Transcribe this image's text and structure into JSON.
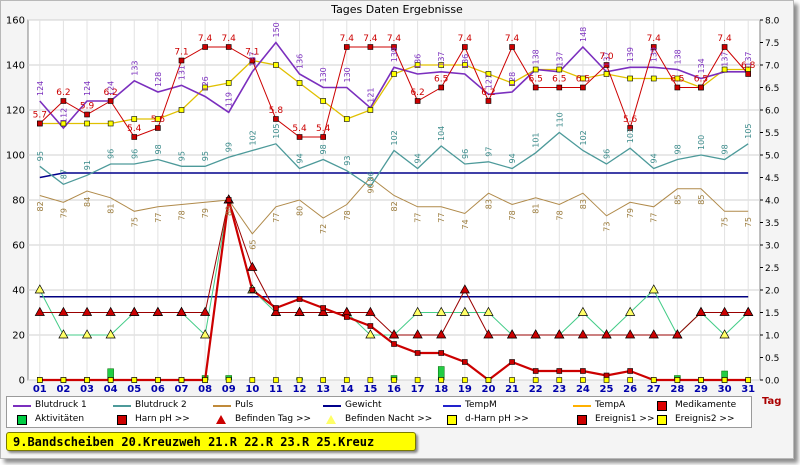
{
  "chart_data": {
    "type": "line",
    "title": "Tages Daten Ergebnisse",
    "xlabel": "Tag",
    "ylim": [
      0,
      160
    ],
    "ylim_right": [
      0,
      8
    ],
    "yticks": [
      "0",
      "20",
      "40",
      "60",
      "80",
      "100",
      "120",
      "140",
      "160"
    ],
    "yticks_right": [
      "0.0",
      "0.5",
      "1.0",
      "1.5",
      "2.0",
      "2.5",
      "3.0",
      "3.5",
      "4.0",
      "4.5",
      "5.0",
      "5.5",
      "6.0",
      "6.5",
      "7.0",
      "7.5",
      "8.0"
    ],
    "categories": [
      "01",
      "02",
      "03",
      "04",
      "05",
      "06",
      "07",
      "08",
      "09",
      "10",
      "11",
      "12",
      "13",
      "14",
      "15",
      "16",
      "17",
      "18",
      "19",
      "20",
      "21",
      "22",
      "23",
      "24",
      "25",
      "26",
      "27",
      "28",
      "29",
      "30",
      "31"
    ],
    "grid": true,
    "series": [
      {
        "name": "Blutdruck 1",
        "color": "#7b2fbe",
        "axis": "left",
        "values": [
          124,
          112,
          124,
          124,
          133,
          128,
          131,
          126,
          119,
          137,
          150,
          136,
          130,
          130,
          121,
          139,
          136,
          137,
          136,
          127,
          128,
          138,
          137,
          148,
          137,
          139,
          139,
          138,
          134,
          137,
          137
        ],
        "labels": [
          124,
          112,
          124,
          124,
          133,
          128,
          131,
          126,
          119,
          137,
          150,
          136,
          130,
          130,
          121,
          139,
          136,
          137,
          136,
          127,
          128,
          138,
          137,
          148,
          137,
          139,
          139,
          138,
          134,
          137,
          137
        ]
      },
      {
        "name": "Blutdruck 2",
        "color": "#4d9a9a",
        "axis": "left",
        "values": [
          95,
          87,
          91,
          96,
          96,
          98,
          95,
          95,
          99,
          102,
          105,
          94,
          98,
          93,
          86,
          102,
          94,
          104,
          96,
          97,
          94,
          101,
          110,
          102,
          96,
          103,
          94,
          98,
          100,
          98,
          105
        ],
        "labels": [
          95,
          87,
          91,
          96,
          96,
          98,
          95,
          95,
          99,
          102,
          105,
          94,
          98,
          93,
          86,
          102,
          94,
          104,
          96,
          97,
          94,
          101,
          110,
          102,
          96,
          103,
          94,
          98,
          100,
          98,
          105
        ]
      },
      {
        "name": "Puls",
        "color": "#b08a4a",
        "axis": "left",
        "values": [
          82,
          79,
          84,
          81,
          75,
          77,
          78,
          79,
          80,
          65,
          77,
          80,
          72,
          78,
          90,
          82,
          77,
          77,
          74,
          83,
          78,
          81,
          78,
          83,
          73,
          79,
          77,
          85,
          85,
          75,
          75
        ],
        "labels": [
          82,
          79,
          84,
          81,
          75,
          77,
          78,
          79,
          80,
          65,
          77,
          80,
          72,
          78,
          90,
          82,
          77,
          77,
          74,
          83,
          78,
          81,
          78,
          83,
          73,
          79,
          77,
          85,
          85,
          75,
          75
        ]
      },
      {
        "name": "Gewicht",
        "color": "#00008b",
        "axis": "left",
        "values": [
          90,
          92,
          92,
          92,
          92,
          92,
          92,
          92,
          92,
          92,
          92,
          92,
          92,
          92,
          92,
          92,
          92,
          92,
          92,
          92,
          92,
          92,
          92,
          92,
          92,
          92,
          92,
          92,
          92,
          92,
          92
        ]
      },
      {
        "name": "TempM",
        "color": "#000080",
        "axis": "left",
        "values": [
          37,
          37,
          37,
          37,
          37,
          37,
          37,
          37,
          37,
          37,
          37,
          37,
          37,
          37,
          37,
          37,
          37,
          37,
          37,
          37,
          37,
          37,
          37,
          37,
          37,
          37,
          37,
          37,
          37,
          37,
          37
        ]
      },
      {
        "name": "TempA",
        "color": "#ffb000",
        "axis": "left",
        "values": [
          37,
          37,
          37,
          37,
          37,
          37,
          37,
          37,
          37,
          37,
          37,
          37,
          37,
          37,
          37,
          37,
          37,
          37,
          37,
          37,
          37,
          37,
          37,
          37,
          37,
          37,
          37,
          37,
          37,
          37,
          37
        ]
      },
      {
        "name": "Medikamente",
        "color": "#dd0000",
        "axis": "left",
        "values": [
          0,
          0,
          0,
          0,
          0,
          0,
          0,
          0,
          0,
          0,
          0,
          0,
          0,
          0,
          0,
          0,
          0,
          0,
          0,
          0,
          0,
          0,
          0,
          0,
          0,
          0,
          0,
          0,
          0,
          0,
          0
        ]
      },
      {
        "name": "Aktivitäten",
        "color": "#00cc00",
        "axis": "left",
        "values": [
          0,
          0,
          0,
          5,
          0,
          0,
          0,
          2,
          2,
          0,
          0,
          1,
          0,
          0,
          0,
          2,
          0,
          6,
          0,
          0,
          0,
          0,
          0,
          0,
          0,
          0,
          0,
          2,
          0,
          4,
          0
        ]
      },
      {
        "name": "Harn pH >>",
        "color": "#cc0000",
        "axis": "right",
        "values": [
          5.7,
          6.2,
          5.9,
          6.2,
          5.4,
          5.6,
          7.1,
          7.4,
          7.4,
          7.1,
          5.8,
          5.4,
          5.4,
          7.4,
          7.4,
          7.4,
          6.2,
          6.5,
          7.4,
          6.2,
          7.4,
          6.5,
          6.5,
          6.5,
          7.0,
          5.6,
          7.4,
          6.5,
          6.5,
          7.4,
          6.8
        ],
        "labels": [
          "5.7",
          "6.2",
          "5.9",
          "6.2",
          "5.4",
          "5.6",
          "7.1",
          "7.4",
          "7.4",
          "7.1",
          "5.8",
          "5.4",
          "5.4",
          "7.4",
          "7.4",
          "7.4",
          "6.2",
          "6.5",
          "7.4",
          "6.2",
          "7.4",
          "6.5",
          "6.5",
          "6.5",
          "7.0",
          "5.6",
          "7.4",
          "6.5",
          "6.5",
          "7.4",
          "6.8"
        ]
      },
      {
        "name": "Befinden Tag >>",
        "color": "#cc0000",
        "axis": "left",
        "values": [
          30,
          30,
          30,
          30,
          30,
          30,
          30,
          30,
          80,
          50,
          30,
          30,
          30,
          30,
          30,
          20,
          20,
          20,
          40,
          20,
          20,
          20,
          20,
          20,
          20,
          20,
          20,
          20,
          30,
          30,
          30
        ]
      },
      {
        "name": "Befinden Nacht >>",
        "color": "#000000",
        "axis": "left",
        "values": [
          40,
          20,
          20,
          20,
          30,
          30,
          30,
          20,
          80,
          40,
          30,
          30,
          30,
          30,
          20,
          20,
          30,
          30,
          30,
          30,
          20,
          20,
          20,
          30,
          20,
          30,
          40,
          20,
          30,
          20,
          30
        ]
      },
      {
        "name": "d-Harn pH >>",
        "color": "#e0c000",
        "axis": "right",
        "values": [
          5.7,
          5.7,
          5.7,
          5.7,
          5.8,
          5.8,
          6.0,
          6.5,
          6.6,
          7.1,
          7.0,
          6.6,
          6.2,
          5.8,
          6.0,
          6.8,
          7.0,
          7.0,
          7.0,
          6.8,
          6.6,
          6.9,
          6.9,
          6.7,
          6.8,
          6.7,
          6.7,
          6.7,
          6.5,
          6.9,
          6.9
        ]
      },
      {
        "name": "Ereignis1 >>",
        "color": "#cc0000",
        "axis": "left",
        "values": [
          0,
          0,
          0,
          0,
          0,
          0,
          0,
          0,
          80,
          40,
          32,
          36,
          32,
          28,
          24,
          16,
          12,
          12,
          8,
          0,
          8,
          4,
          4,
          4,
          2,
          4,
          0,
          0,
          0,
          0,
          0
        ]
      },
      {
        "name": "Ereignis2 >>",
        "color": "#d4c000",
        "axis": "left",
        "values": [
          0,
          0,
          0,
          0,
          0,
          0,
          0,
          0,
          0,
          0,
          0,
          0,
          0,
          0,
          0,
          0,
          0,
          0,
          0,
          0,
          0,
          0,
          0,
          0,
          0,
          0,
          0,
          0,
          0,
          0,
          0
        ]
      }
    ]
  },
  "legend": {
    "items": [
      {
        "label": "Blutdruck 1",
        "color": "#7b2fbe",
        "marker": "line"
      },
      {
        "label": "Blutdruck 2",
        "color": "#4d9a9a",
        "marker": "line"
      },
      {
        "label": "Puls",
        "color": "#c08a3a",
        "marker": "line"
      },
      {
        "label": "Gewicht",
        "color": "#00008b",
        "marker": "line"
      },
      {
        "label": "TempM",
        "color": "#2222cc",
        "marker": "line"
      },
      {
        "label": "TempA",
        "color": "#ffb000",
        "marker": "line"
      },
      {
        "label": "Medikamente",
        "color": "#dd0000",
        "marker": "box"
      },
      {
        "label": "Aktivitäten",
        "color": "#00cc44",
        "marker": "box"
      },
      {
        "label": "Harn pH >>",
        "color": "#cc0000",
        "marker": "box"
      },
      {
        "label": "Befinden Tag >>",
        "color": "#cc0000",
        "marker": "triangle"
      },
      {
        "label": "Befinden Nacht >>",
        "color": "#ffff66",
        "marker": "triangle"
      },
      {
        "label": "d-Harn pH >>",
        "color": "#ffff00",
        "marker": "box"
      },
      {
        "label": "Ereignis1 >>",
        "color": "#cc0000",
        "marker": "box"
      },
      {
        "label": "Ereignis2 >>",
        "color": "#ffff00",
        "marker": "box"
      }
    ]
  },
  "note": "9.Bandscheiben 20.Kreuzweh 21.R 22.R 23.R 25.Kreuz"
}
